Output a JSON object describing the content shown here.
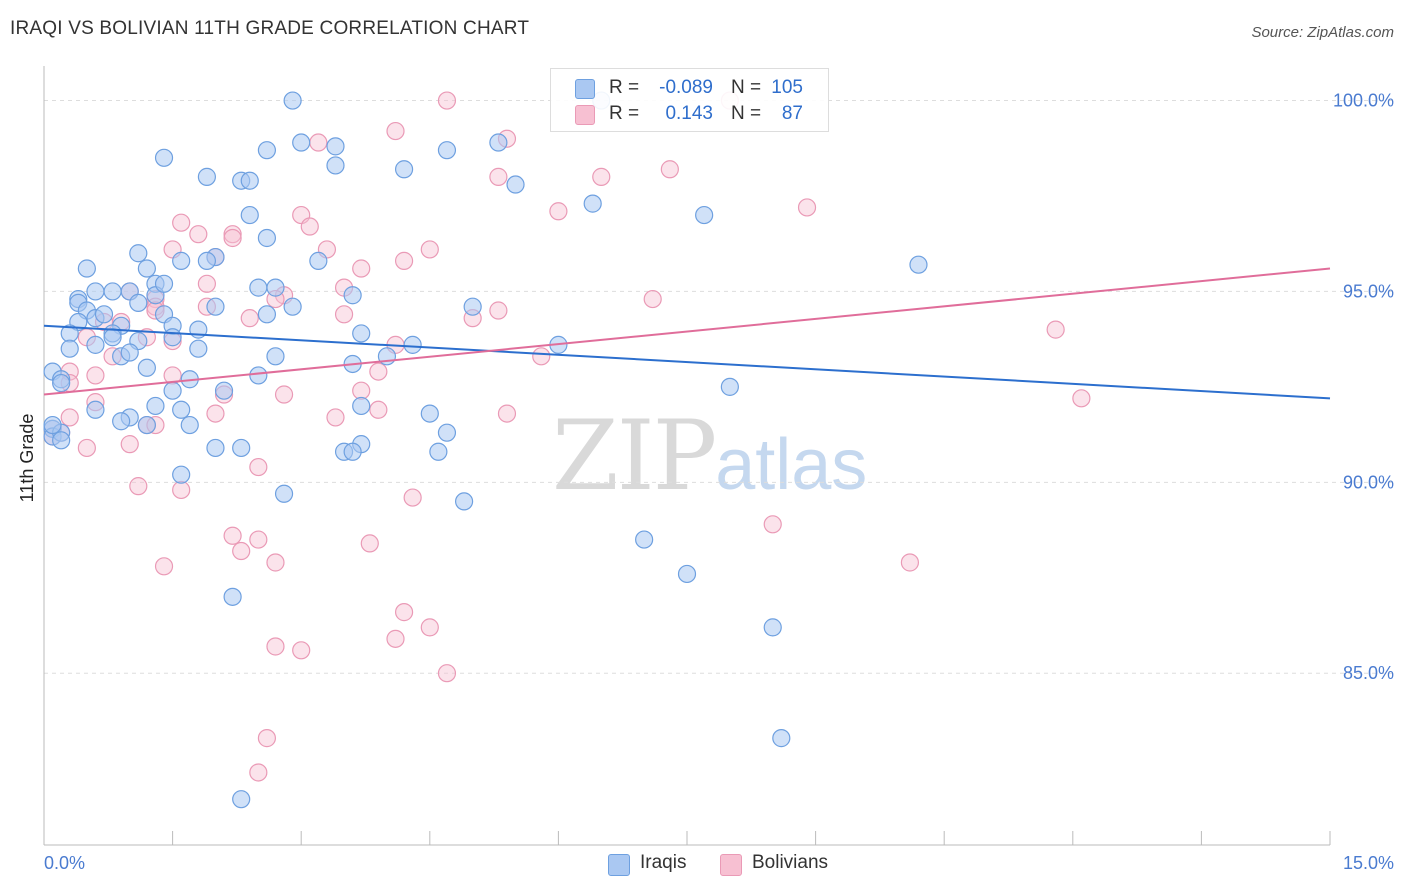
{
  "header": {
    "title": "IRAQI VS BOLIVIAN 11TH GRADE CORRELATION CHART",
    "source": "Source: ZipAtlas.com"
  },
  "watermark": {
    "zip": "ZIP",
    "atlas": "atlas"
  },
  "colors": {
    "iraqi_fill": "#aac8f2",
    "iraqi_stroke": "#6ea0e0",
    "iraqi_line": "#2c6fce",
    "bolivian_fill": "#f7c0d2",
    "bolivian_stroke": "#ea9ab6",
    "bolivian_line": "#e06d9a",
    "tick_label": "#4a7bd0",
    "grid": "#dddddd"
  },
  "legend": {
    "rows": [
      {
        "r_label": "R =",
        "r_value": "-0.089",
        "n_label": "N =",
        "n_value": "105"
      },
      {
        "r_label": "R =",
        "r_value": "0.143",
        "n_label": "N =",
        "n_value": "87"
      }
    ]
  },
  "bottom_legend": {
    "iraqi": "Iraqis",
    "bolivian": "Bolivians"
  },
  "chart_data": {
    "type": "scatter",
    "title": "IRAQI VS BOLIVIAN 11TH GRADE CORRELATION CHART",
    "xlabel": "",
    "ylabel": "11th Grade",
    "xlim": [
      0,
      15
    ],
    "ylim": [
      80.5,
      100.8
    ],
    "x_tick_labels": [
      "0.0%",
      "15.0%"
    ],
    "y_ticks": [
      85,
      90,
      95,
      100
    ],
    "y_tick_labels": [
      "85.0%",
      "90.0%",
      "95.0%",
      "100.0%"
    ],
    "grid": true,
    "legend_position": "top-center",
    "series": [
      {
        "name": "Iraqis",
        "r": -0.089,
        "n": 105,
        "trend": {
          "x": [
            0,
            15
          ],
          "y": [
            94.1,
            92.2
          ]
        },
        "points": [
          [
            2.9,
            100.0
          ],
          [
            6.5,
            100.0
          ],
          [
            3.0,
            98.9
          ],
          [
            3.4,
            98.8
          ],
          [
            5.3,
            98.9
          ],
          [
            4.7,
            98.7
          ],
          [
            2.6,
            98.7
          ],
          [
            1.4,
            98.5
          ],
          [
            3.4,
            98.3
          ],
          [
            4.2,
            98.2
          ],
          [
            1.9,
            98.0
          ],
          [
            2.3,
            97.9
          ],
          [
            2.4,
            97.9
          ],
          [
            5.5,
            97.8
          ],
          [
            6.4,
            97.3
          ],
          [
            2.4,
            97.0
          ],
          [
            7.7,
            97.0
          ],
          [
            2.6,
            96.4
          ],
          [
            1.1,
            96.0
          ],
          [
            2.0,
            95.9
          ],
          [
            1.6,
            95.8
          ],
          [
            1.9,
            95.8
          ],
          [
            3.2,
            95.8
          ],
          [
            1.2,
            95.6
          ],
          [
            0.5,
            95.6
          ],
          [
            10.2,
            95.7
          ],
          [
            1.3,
            95.2
          ],
          [
            2.5,
            95.1
          ],
          [
            0.6,
            95.0
          ],
          [
            0.8,
            95.0
          ],
          [
            1.0,
            95.0
          ],
          [
            1.3,
            94.9
          ],
          [
            3.6,
            94.9
          ],
          [
            0.4,
            94.8
          ],
          [
            0.4,
            94.7
          ],
          [
            1.1,
            94.7
          ],
          [
            2.0,
            94.6
          ],
          [
            2.9,
            94.6
          ],
          [
            5.0,
            94.6
          ],
          [
            0.5,
            94.5
          ],
          [
            1.4,
            94.4
          ],
          [
            2.6,
            94.4
          ],
          [
            0.6,
            94.3
          ],
          [
            0.4,
            94.2
          ],
          [
            0.9,
            94.1
          ],
          [
            1.5,
            94.1
          ],
          [
            0.3,
            93.9
          ],
          [
            0.8,
            93.9
          ],
          [
            1.8,
            94.0
          ],
          [
            1.5,
            93.8
          ],
          [
            0.8,
            93.8
          ],
          [
            1.1,
            93.7
          ],
          [
            0.6,
            93.6
          ],
          [
            4.3,
            93.6
          ],
          [
            6.0,
            93.6
          ],
          [
            0.3,
            93.5
          ],
          [
            1.8,
            93.5
          ],
          [
            0.9,
            93.3
          ],
          [
            2.7,
            93.3
          ],
          [
            4.0,
            93.3
          ],
          [
            3.6,
            93.1
          ],
          [
            1.2,
            93.0
          ],
          [
            0.1,
            92.9
          ],
          [
            2.5,
            92.8
          ],
          [
            0.2,
            92.7
          ],
          [
            1.7,
            92.7
          ],
          [
            0.2,
            92.6
          ],
          [
            8.0,
            92.5
          ],
          [
            1.5,
            92.4
          ],
          [
            2.1,
            92.4
          ],
          [
            1.3,
            92.0
          ],
          [
            3.7,
            92.0
          ],
          [
            0.6,
            91.9
          ],
          [
            1.6,
            91.9
          ],
          [
            4.5,
            91.8
          ],
          [
            1.0,
            91.7
          ],
          [
            0.9,
            91.6
          ],
          [
            1.7,
            91.5
          ],
          [
            1.2,
            91.5
          ],
          [
            0.1,
            91.4
          ],
          [
            0.1,
            91.2
          ],
          [
            0.2,
            91.3
          ],
          [
            4.7,
            91.3
          ],
          [
            3.7,
            91.0
          ],
          [
            2.0,
            90.9
          ],
          [
            2.3,
            90.9
          ],
          [
            4.6,
            90.8
          ],
          [
            3.5,
            90.8
          ],
          [
            3.6,
            90.8
          ],
          [
            1.6,
            90.2
          ],
          [
            2.8,
            89.7
          ],
          [
            4.9,
            89.5
          ],
          [
            7.0,
            88.5
          ],
          [
            7.5,
            87.6
          ],
          [
            2.2,
            87.0
          ],
          [
            8.5,
            86.2
          ],
          [
            8.6,
            83.3
          ],
          [
            2.3,
            81.7
          ],
          [
            0.1,
            91.5
          ],
          [
            0.2,
            91.1
          ],
          [
            0.7,
            94.4
          ],
          [
            1.4,
            95.2
          ],
          [
            2.7,
            95.1
          ],
          [
            3.7,
            93.9
          ],
          [
            1.0,
            93.4
          ]
        ]
      },
      {
        "name": "Bolivians",
        "r": 0.143,
        "n": 87,
        "trend": {
          "x": [
            0,
            15
          ],
          "y": [
            92.3,
            95.6
          ]
        },
        "points": [
          [
            4.7,
            100.0
          ],
          [
            8.0,
            100.0
          ],
          [
            4.1,
            99.2
          ],
          [
            5.4,
            99.0
          ],
          [
            3.2,
            98.9
          ],
          [
            7.3,
            98.2
          ],
          [
            6.5,
            98.0
          ],
          [
            5.3,
            98.0
          ],
          [
            8.9,
            97.2
          ],
          [
            6.0,
            97.1
          ],
          [
            3.0,
            97.0
          ],
          [
            1.6,
            96.8
          ],
          [
            3.1,
            96.7
          ],
          [
            2.2,
            96.5
          ],
          [
            1.8,
            96.5
          ],
          [
            2.2,
            96.4
          ],
          [
            1.5,
            96.1
          ],
          [
            3.3,
            96.1
          ],
          [
            4.5,
            96.1
          ],
          [
            4.2,
            95.8
          ],
          [
            2.0,
            95.9
          ],
          [
            3.7,
            95.6
          ],
          [
            1.9,
            95.2
          ],
          [
            3.5,
            95.1
          ],
          [
            1.0,
            95.0
          ],
          [
            2.8,
            94.9
          ],
          [
            1.3,
            94.8
          ],
          [
            7.1,
            94.8
          ],
          [
            1.3,
            94.6
          ],
          [
            1.3,
            94.5
          ],
          [
            5.3,
            94.5
          ],
          [
            1.9,
            94.6
          ],
          [
            2.4,
            94.3
          ],
          [
            5.0,
            94.3
          ],
          [
            0.7,
            94.2
          ],
          [
            11.8,
            94.0
          ],
          [
            0.5,
            93.8
          ],
          [
            1.2,
            93.8
          ],
          [
            1.5,
            93.7
          ],
          [
            4.1,
            93.6
          ],
          [
            0.8,
            93.3
          ],
          [
            5.8,
            93.3
          ],
          [
            3.9,
            92.9
          ],
          [
            0.3,
            92.9
          ],
          [
            0.6,
            92.8
          ],
          [
            1.5,
            92.8
          ],
          [
            0.3,
            92.6
          ],
          [
            3.7,
            92.4
          ],
          [
            2.1,
            92.3
          ],
          [
            2.8,
            92.3
          ],
          [
            12.1,
            92.2
          ],
          [
            0.6,
            92.1
          ],
          [
            2.0,
            91.8
          ],
          [
            3.9,
            91.9
          ],
          [
            5.4,
            91.8
          ],
          [
            3.4,
            91.7
          ],
          [
            0.3,
            91.7
          ],
          [
            1.2,
            91.5
          ],
          [
            0.1,
            91.4
          ],
          [
            0.1,
            91.2
          ],
          [
            0.5,
            90.9
          ],
          [
            1.0,
            91.0
          ],
          [
            2.5,
            90.4
          ],
          [
            1.1,
            89.9
          ],
          [
            1.6,
            89.8
          ],
          [
            4.3,
            89.6
          ],
          [
            8.5,
            88.9
          ],
          [
            2.2,
            88.6
          ],
          [
            2.5,
            88.5
          ],
          [
            3.8,
            88.4
          ],
          [
            2.3,
            88.2
          ],
          [
            2.7,
            87.9
          ],
          [
            1.4,
            87.8
          ],
          [
            10.1,
            87.9
          ],
          [
            4.2,
            86.6
          ],
          [
            4.5,
            86.2
          ],
          [
            4.1,
            85.9
          ],
          [
            2.7,
            85.7
          ],
          [
            3.0,
            85.6
          ],
          [
            4.7,
            85.0
          ],
          [
            2.6,
            83.3
          ],
          [
            2.5,
            82.4
          ],
          [
            0.2,
            91.3
          ],
          [
            1.3,
            91.5
          ],
          [
            0.9,
            94.2
          ],
          [
            3.5,
            94.4
          ],
          [
            2.7,
            94.8
          ]
        ]
      }
    ]
  }
}
